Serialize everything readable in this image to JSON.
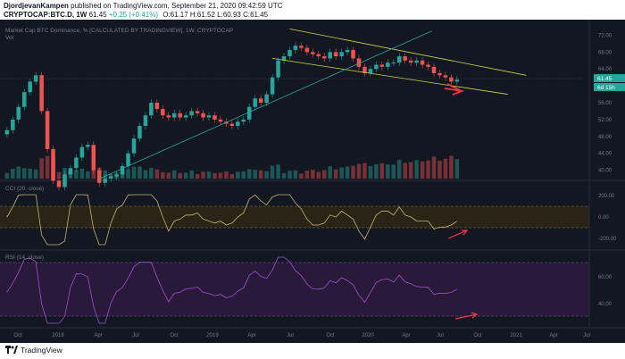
{
  "header": {
    "author": "DjordjevanKampen",
    "published_text": "published on TradingView.com, September 21, 2020 09:42:59 UTC",
    "symbol": "CRYPTOCAP:BTC.D, 1W",
    "last": "61.45",
    "change": "+0.25 (+0.41%)",
    "ohlc": "O:61.17 H:61.52 L:60.93 C:61.45"
  },
  "main_pane": {
    "title": "Market Cap BTC Dominance, % [CALCULATED BY TRADINGVIEW], 1W, CRYPTOCAP",
    "vol_label": "Vol",
    "price_ticks": [
      "72.00",
      "68.00",
      "64.00",
      "60.00",
      "56.00",
      "52.00",
      "48.00",
      "44.00",
      "40.00"
    ],
    "last_price_label": "61.45",
    "countdown_label": "6d 15h"
  },
  "cci_pane": {
    "title": "CCI (20, close)",
    "ticks": [
      "200.00",
      "0.00",
      "-200.00"
    ]
  },
  "rsi_pane": {
    "title": "RSI (14, close)",
    "ticks": [
      "60.00",
      "40.00"
    ]
  },
  "time_axis": [
    "Oct",
    "2018",
    "Apr",
    "Jul",
    "Oct",
    "2019",
    "Apr",
    "Jul",
    "Oct",
    "2020",
    "Apr",
    "Jul",
    "Oct",
    "2021",
    "Apr",
    "Jul"
  ],
  "footer": {
    "brand": "TradingView"
  },
  "colors": {
    "bg": "#131722",
    "up": "#26a69a",
    "down": "#ef5350",
    "channel": "#d4d44a",
    "trend": "#26a69a",
    "cci": "#c8b270",
    "rsi": "#a24fd6",
    "arrow": "#f23645",
    "rsi_band": "#2a1a3a",
    "cci_band": "#2a2416"
  },
  "chart_data": {
    "type": "candlestick",
    "title": "Market Cap BTC Dominance, % [CALCULATED BY TRADINGVIEW], 1W, CRYPTOCAP",
    "y_range": [
      38.0,
      74.0
    ],
    "x_range_dates": [
      "2017-09-01",
      "2021-08-01"
    ],
    "close_weekly_approx": [
      {
        "date": "2017-09-18",
        "close": 49.5
      },
      {
        "date": "2017-10-02",
        "close": 52.0
      },
      {
        "date": "2017-10-16",
        "close": 55.0
      },
      {
        "date": "2017-10-30",
        "close": 58.5
      },
      {
        "date": "2017-11-13",
        "close": 61.0
      },
      {
        "date": "2017-11-27",
        "close": 62.5
      },
      {
        "date": "2017-12-11",
        "close": 54.0
      },
      {
        "date": "2017-12-25",
        "close": 45.0
      },
      {
        "date": "2018-01-08",
        "close": 37.5
      },
      {
        "date": "2018-01-22",
        "close": 36.0
      },
      {
        "date": "2018-02-05",
        "close": 39.0
      },
      {
        "date": "2018-02-19",
        "close": 40.5
      },
      {
        "date": "2018-03-05",
        "close": 43.0
      },
      {
        "date": "2018-03-19",
        "close": 45.5
      },
      {
        "date": "2018-04-02",
        "close": 46.0
      },
      {
        "date": "2018-04-16",
        "close": 40.0
      },
      {
        "date": "2018-04-30",
        "close": 37.0
      },
      {
        "date": "2018-05-14",
        "close": 38.0
      },
      {
        "date": "2018-05-28",
        "close": 38.5
      },
      {
        "date": "2018-06-11",
        "close": 39.0
      },
      {
        "date": "2018-06-25",
        "close": 41.0
      },
      {
        "date": "2018-07-09",
        "close": 44.0
      },
      {
        "date": "2018-07-23",
        "close": 47.5
      },
      {
        "date": "2018-08-06",
        "close": 50.5
      },
      {
        "date": "2018-08-20",
        "close": 53.0
      },
      {
        "date": "2018-09-03",
        "close": 56.0
      },
      {
        "date": "2018-09-17",
        "close": 54.5
      },
      {
        "date": "2018-10-01",
        "close": 53.0
      },
      {
        "date": "2018-10-15",
        "close": 52.5
      },
      {
        "date": "2018-10-29",
        "close": 53.5
      },
      {
        "date": "2018-11-12",
        "close": 52.5
      },
      {
        "date": "2018-11-26",
        "close": 53.0
      },
      {
        "date": "2018-12-10",
        "close": 54.0
      },
      {
        "date": "2018-12-24",
        "close": 53.5
      },
      {
        "date": "2019-01-07",
        "close": 52.5
      },
      {
        "date": "2019-01-21",
        "close": 53.0
      },
      {
        "date": "2019-02-04",
        "close": 52.0
      },
      {
        "date": "2019-02-18",
        "close": 51.5
      },
      {
        "date": "2019-03-04",
        "close": 51.0
      },
      {
        "date": "2019-03-18",
        "close": 50.5
      },
      {
        "date": "2019-04-01",
        "close": 51.5
      },
      {
        "date": "2019-04-15",
        "close": 52.0
      },
      {
        "date": "2019-04-29",
        "close": 55.0
      },
      {
        "date": "2019-05-13",
        "close": 57.0
      },
      {
        "date": "2019-05-27",
        "close": 56.0
      },
      {
        "date": "2019-06-10",
        "close": 58.0
      },
      {
        "date": "2019-06-24",
        "close": 62.0
      },
      {
        "date": "2019-07-08",
        "close": 66.0
      },
      {
        "date": "2019-07-22",
        "close": 67.0
      },
      {
        "date": "2019-08-05",
        "close": 68.5
      },
      {
        "date": "2019-08-19",
        "close": 69.5
      },
      {
        "date": "2019-09-02",
        "close": 69.0
      },
      {
        "date": "2019-09-16",
        "close": 68.0
      },
      {
        "date": "2019-09-30",
        "close": 67.5
      },
      {
        "date": "2019-10-14",
        "close": 67.0
      },
      {
        "date": "2019-10-28",
        "close": 66.5
      },
      {
        "date": "2019-11-11",
        "close": 68.0
      },
      {
        "date": "2019-11-25",
        "close": 67.0
      },
      {
        "date": "2019-12-09",
        "close": 68.0
      },
      {
        "date": "2019-12-23",
        "close": 68.5
      },
      {
        "date": "2020-01-06",
        "close": 66.5
      },
      {
        "date": "2020-01-20",
        "close": 64.5
      },
      {
        "date": "2020-02-03",
        "close": 63.0
      },
      {
        "date": "2020-02-17",
        "close": 64.0
      },
      {
        "date": "2020-03-02",
        "close": 65.0
      },
      {
        "date": "2020-03-16",
        "close": 64.5
      },
      {
        "date": "2020-03-30",
        "close": 65.5
      },
      {
        "date": "2020-04-13",
        "close": 65.5
      },
      {
        "date": "2020-04-27",
        "close": 67.0
      },
      {
        "date": "2020-05-11",
        "close": 66.0
      },
      {
        "date": "2020-05-25",
        "close": 65.5
      },
      {
        "date": "2020-06-08",
        "close": 66.0
      },
      {
        "date": "2020-06-22",
        "close": 65.0
      },
      {
        "date": "2020-07-06",
        "close": 64.5
      },
      {
        "date": "2020-07-20",
        "close": 63.0
      },
      {
        "date": "2020-08-03",
        "close": 62.5
      },
      {
        "date": "2020-08-17",
        "close": 62.0
      },
      {
        "date": "2020-08-31",
        "close": 61.0
      },
      {
        "date": "2020-09-14",
        "close": 61.45
      }
    ],
    "annotations": {
      "descending_channel": {
        "upper": [
          [
            "2019-08-05",
            73.5
          ],
          [
            "2021-03-01",
            62.5
          ]
        ],
        "lower": [
          [
            "2019-06-24",
            66.5
          ],
          [
            "2021-01-15",
            58.0
          ]
        ]
      },
      "ascending_trendline": [
        [
          "2018-05-01",
          38.0
        ],
        [
          "2020-07-15",
          73.0
        ]
      ]
    }
  }
}
